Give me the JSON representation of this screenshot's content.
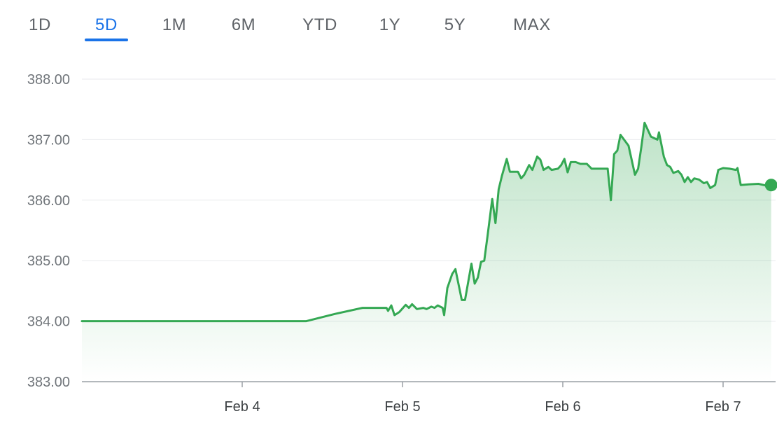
{
  "range_tabs": {
    "items": [
      {
        "label": "1D",
        "id": "1d"
      },
      {
        "label": "5D",
        "id": "5d"
      },
      {
        "label": "1M",
        "id": "1m"
      },
      {
        "label": "6M",
        "id": "6m"
      },
      {
        "label": "YTD",
        "id": "ytd"
      },
      {
        "label": "1Y",
        "id": "1y"
      },
      {
        "label": "5Y",
        "id": "5y"
      },
      {
        "label": "MAX",
        "id": "max"
      }
    ],
    "selected": "5D"
  },
  "colors": {
    "line": "#34a853",
    "area_top": "#34a853",
    "tab_active": "#1a73e8",
    "tab_inactive": "#5f6368",
    "gridline": "#e8eaed",
    "baseline": "#9aa0a6",
    "ylabel": "#70757a",
    "xlabel": "#3c4043"
  },
  "chart_data": {
    "type": "area",
    "title": "",
    "xlabel": "",
    "ylabel": "",
    "ylim": [
      383.0,
      388.0
    ],
    "yticks": [
      "388.00",
      "387.00",
      "386.00",
      "385.00",
      "384.00",
      "383.00"
    ],
    "xticks": [
      {
        "label": "Feb 4",
        "x": 4.0
      },
      {
        "label": "Feb 5",
        "x": 5.0
      },
      {
        "label": "Feb 6",
        "x": 6.0
      },
      {
        "label": "Feb 7",
        "x": 7.0
      }
    ],
    "xlim": [
      3.0,
      7.33
    ],
    "grid": true,
    "legend": "none",
    "series": [
      {
        "values": [
          [
            3.0,
            384.0
          ],
          [
            4.4,
            384.0
          ],
          [
            4.58,
            384.12
          ],
          [
            4.75,
            384.22
          ],
          [
            4.9,
            384.22
          ],
          [
            4.91,
            384.17
          ],
          [
            4.93,
            384.26
          ],
          [
            4.95,
            384.1
          ],
          [
            4.98,
            384.15
          ],
          [
            5.02,
            384.27
          ],
          [
            5.04,
            384.22
          ],
          [
            5.06,
            384.28
          ],
          [
            5.09,
            384.2
          ],
          [
            5.13,
            384.22
          ],
          [
            5.15,
            384.2
          ],
          [
            5.18,
            384.24
          ],
          [
            5.2,
            384.22
          ],
          [
            5.22,
            384.26
          ],
          [
            5.25,
            384.22
          ],
          [
            5.26,
            384.1
          ],
          [
            5.28,
            384.55
          ],
          [
            5.31,
            384.78
          ],
          [
            5.33,
            384.86
          ],
          [
            5.37,
            384.35
          ],
          [
            5.39,
            384.35
          ],
          [
            5.43,
            384.95
          ],
          [
            5.45,
            384.62
          ],
          [
            5.47,
            384.72
          ],
          [
            5.49,
            384.98
          ],
          [
            5.51,
            385.0
          ],
          [
            5.53,
            385.4
          ],
          [
            5.56,
            386.02
          ],
          [
            5.58,
            385.62
          ],
          [
            5.6,
            386.18
          ],
          [
            5.62,
            386.4
          ],
          [
            5.65,
            386.68
          ],
          [
            5.67,
            386.47
          ],
          [
            5.72,
            386.47
          ],
          [
            5.74,
            386.36
          ],
          [
            5.76,
            386.42
          ],
          [
            5.79,
            386.58
          ],
          [
            5.81,
            386.5
          ],
          [
            5.84,
            386.72
          ],
          [
            5.86,
            386.67
          ],
          [
            5.88,
            386.5
          ],
          [
            5.91,
            386.55
          ],
          [
            5.93,
            386.5
          ],
          [
            5.97,
            386.52
          ],
          [
            5.99,
            386.58
          ],
          [
            6.01,
            386.68
          ],
          [
            6.03,
            386.46
          ],
          [
            6.05,
            386.63
          ],
          [
            6.08,
            386.63
          ],
          [
            6.11,
            386.6
          ],
          [
            6.15,
            386.6
          ],
          [
            6.18,
            386.52
          ],
          [
            6.22,
            386.52
          ],
          [
            6.28,
            386.52
          ],
          [
            6.3,
            386.0
          ],
          [
            6.32,
            386.76
          ],
          [
            6.34,
            386.82
          ],
          [
            6.36,
            387.08
          ],
          [
            6.41,
            386.9
          ],
          [
            6.45,
            386.42
          ],
          [
            6.47,
            386.52
          ],
          [
            6.49,
            386.88
          ],
          [
            6.51,
            387.28
          ],
          [
            6.55,
            387.05
          ],
          [
            6.59,
            387.0
          ],
          [
            6.6,
            387.12
          ],
          [
            6.63,
            386.72
          ],
          [
            6.65,
            386.58
          ],
          [
            6.67,
            386.55
          ],
          [
            6.69,
            386.45
          ],
          [
            6.72,
            386.48
          ],
          [
            6.74,
            386.42
          ],
          [
            6.76,
            386.3
          ],
          [
            6.78,
            386.38
          ],
          [
            6.8,
            386.3
          ],
          [
            6.82,
            386.36
          ],
          [
            6.85,
            386.34
          ],
          [
            6.88,
            386.28
          ],
          [
            6.9,
            386.3
          ],
          [
            6.92,
            386.2
          ],
          [
            6.95,
            386.25
          ],
          [
            6.97,
            386.5
          ],
          [
            7.0,
            386.53
          ],
          [
            7.04,
            386.52
          ],
          [
            7.08,
            386.5
          ],
          [
            7.09,
            386.53
          ],
          [
            7.11,
            386.25
          ],
          [
            7.16,
            386.26
          ],
          [
            7.22,
            386.27
          ],
          [
            7.27,
            386.24
          ],
          [
            7.3,
            386.25
          ]
        ]
      }
    ],
    "last_point": [
      7.3,
      386.25
    ]
  }
}
